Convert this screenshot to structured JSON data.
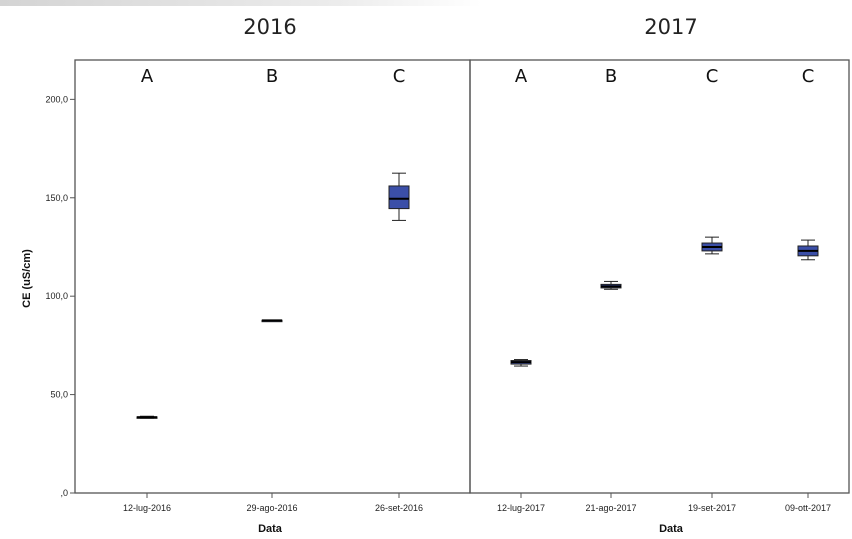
{
  "chart_data": {
    "type": "box",
    "ylabel": "CE (uS/cm)",
    "ylim": [
      0,
      220
    ],
    "yticks": [
      {
        "value": 0,
        "label": ",0"
      },
      {
        "value": 50,
        "label": "50,0"
      },
      {
        "value": 100,
        "label": "100,0"
      },
      {
        "value": 150,
        "label": "150,0"
      },
      {
        "value": 200,
        "label": "200,0"
      }
    ],
    "box_color": "#3b4fa8",
    "panels": [
      {
        "title": "2016",
        "xlabel": "Data",
        "groups": [
          {
            "date": "12-lug-2016",
            "letter": "A",
            "min": 38.0,
            "q1": 38.3,
            "median": 38.5,
            "q3": 38.7,
            "max": 39.0
          },
          {
            "date": "29-ago-2016",
            "letter": "B",
            "min": 87.5,
            "q1": 87.6,
            "median": 87.7,
            "q3": 87.8,
            "max": 87.9
          },
          {
            "date": "26-set-2016",
            "letter": "C",
            "min": 138.5,
            "q1": 144.5,
            "median": 149.5,
            "q3": 156.0,
            "max": 162.5
          }
        ]
      },
      {
        "title": "2017",
        "xlabel": "Data",
        "groups": [
          {
            "date": "12-lug-2017",
            "letter": "A",
            "min": 64.5,
            "q1": 65.5,
            "median": 66.5,
            "q3": 67.3,
            "max": 67.8
          },
          {
            "date": "21-ago-2017",
            "letter": "B",
            "min": 103.5,
            "q1": 104.2,
            "median": 105.0,
            "q3": 106.0,
            "max": 107.5
          },
          {
            "date": "19-set-2017",
            "letter": "C",
            "min": 121.5,
            "q1": 123.0,
            "median": 125.0,
            "q3": 127.0,
            "max": 130.0
          },
          {
            "date": "09-ott-2017",
            "letter": "C",
            "min": 118.5,
            "q1": 120.5,
            "median": 123.0,
            "q3": 125.5,
            "max": 128.5
          }
        ]
      }
    ]
  }
}
